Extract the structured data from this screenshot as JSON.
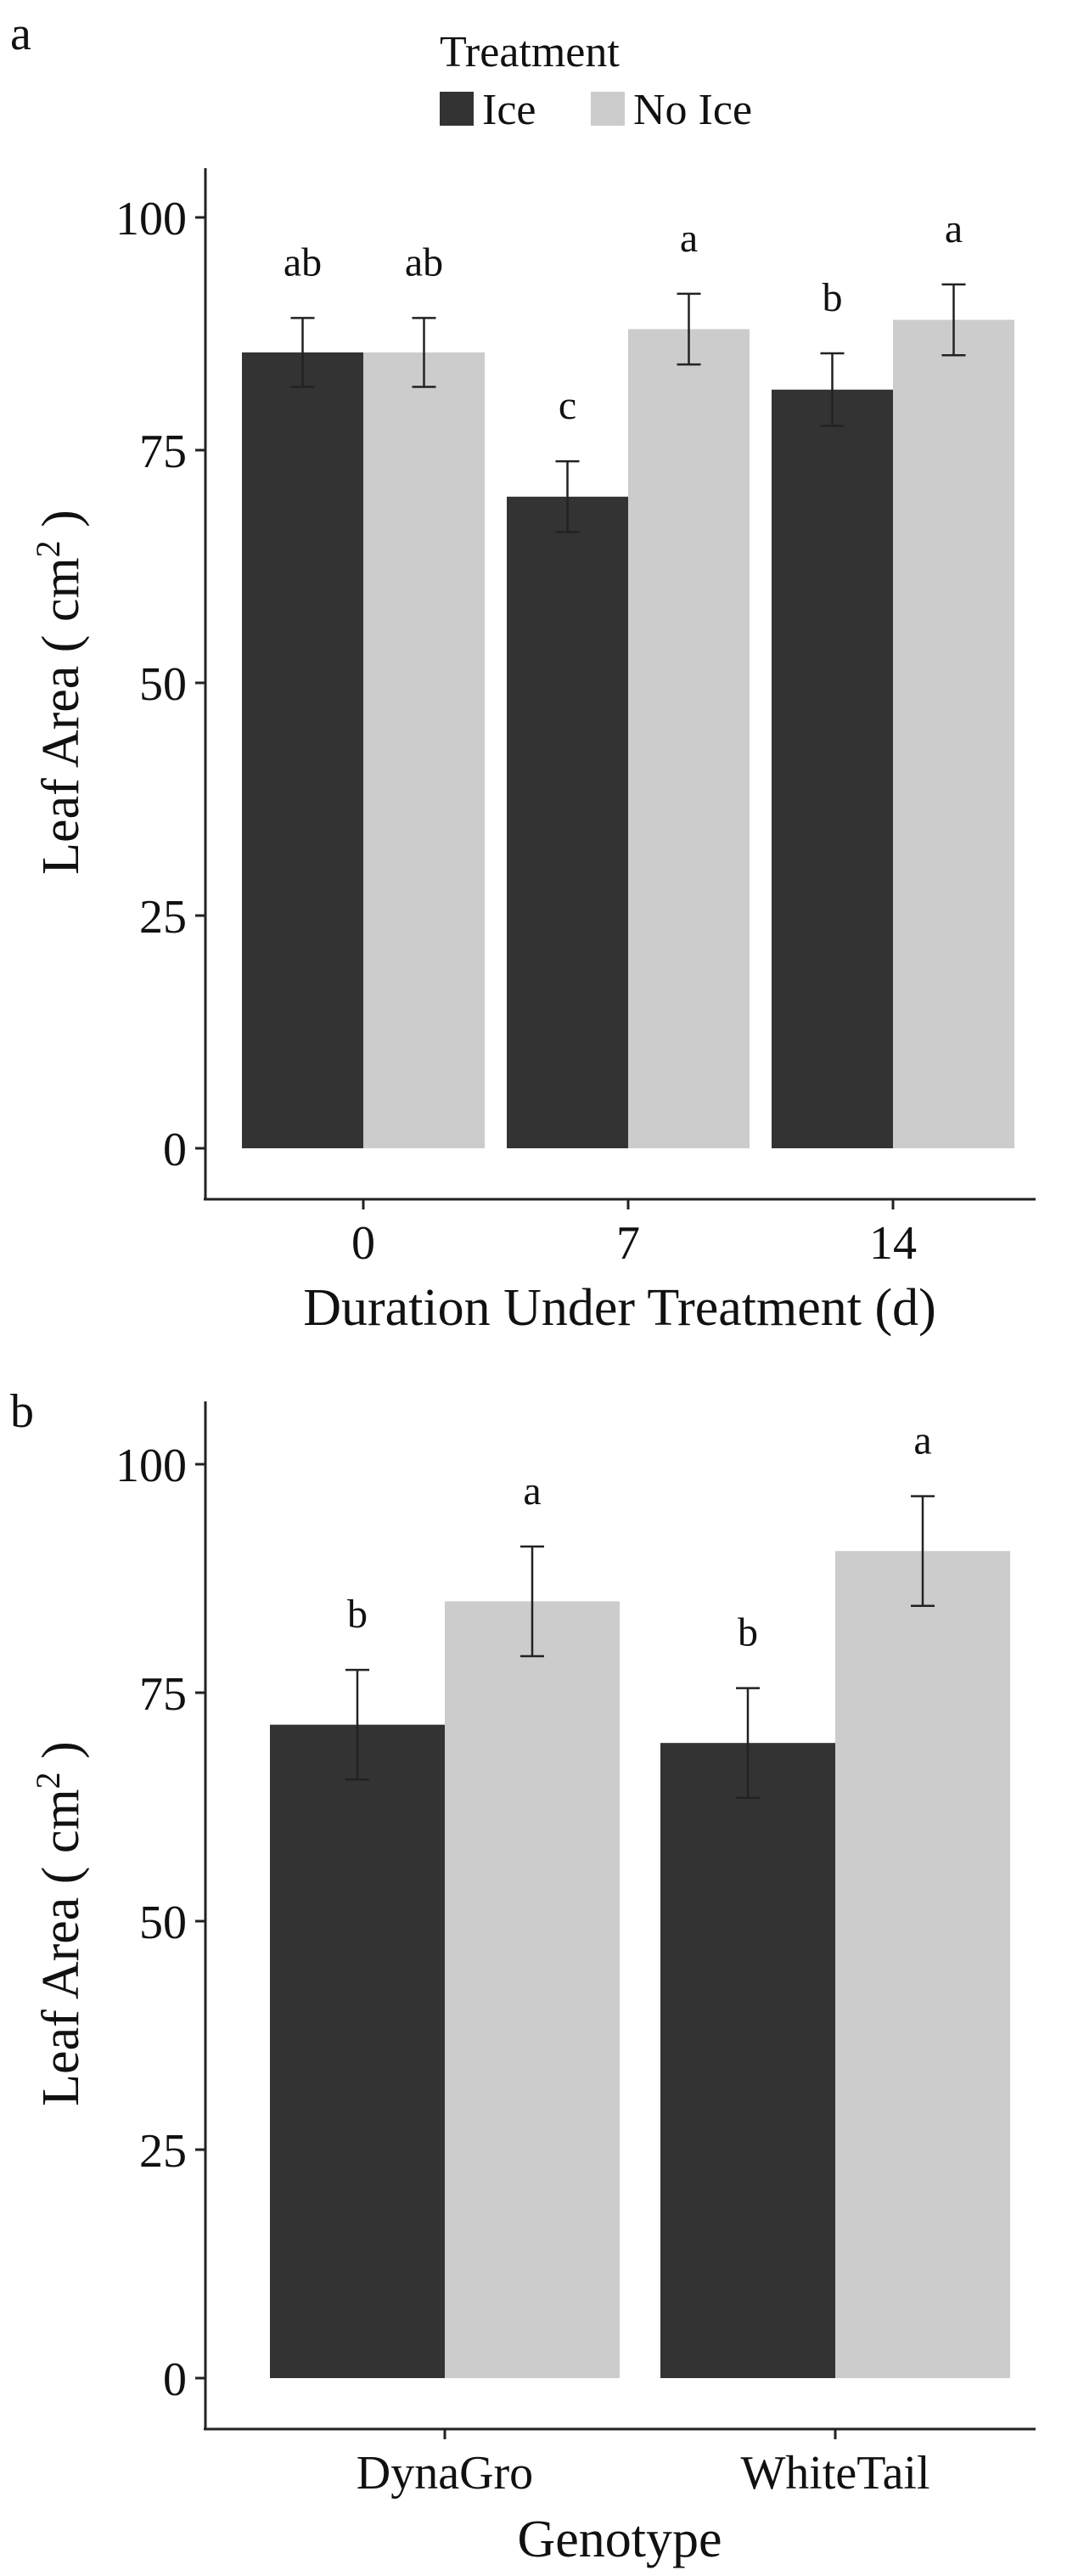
{
  "legend": {
    "title": "Treatment",
    "entries": [
      {
        "label": "Ice",
        "color": "#333333"
      },
      {
        "label": "No Ice",
        "color": "#cccccc"
      }
    ]
  },
  "chart_data": [
    {
      "panel": "a",
      "type": "bar",
      "xlabel": "Duration Under Treatment (d)",
      "ylabel": "Leaf Area ( cm",
      "ylabel_sup": "2",
      "ylabel_close": " )",
      "ylim": [
        0,
        105
      ],
      "yticks": [
        0,
        25,
        50,
        75,
        100
      ],
      "categories": [
        "0",
        "7",
        "14"
      ],
      "series": [
        {
          "name": "Ice",
          "color": "#333333",
          "values": [
            85.5,
            70,
            81.5
          ],
          "errors": [
            3.7,
            3.8,
            3.9
          ],
          "letters": [
            "ab",
            "c",
            "b"
          ]
        },
        {
          "name": "No Ice",
          "color": "#cccccc",
          "values": [
            85.5,
            88,
            89
          ],
          "errors": [
            3.7,
            3.8,
            3.8
          ],
          "letters": [
            "ab",
            "a",
            "a"
          ]
        }
      ]
    },
    {
      "panel": "b",
      "type": "bar",
      "xlabel": "Genotype",
      "ylabel": "Leaf Area ( cm",
      "ylabel_sup": "2",
      "ylabel_close": " )",
      "ylim": [
        0,
        105
      ],
      "yticks": [
        0,
        25,
        50,
        75,
        100
      ],
      "categories": [
        "DynaGro",
        "WhiteTail"
      ],
      "series": [
        {
          "name": "Ice",
          "color": "#333333",
          "values": [
            71.5,
            69.5
          ],
          "errors": [
            6,
            6
          ],
          "letters": [
            "b",
            "b"
          ]
        },
        {
          "name": "No Ice",
          "color": "#cccccc",
          "values": [
            85,
            90.5
          ],
          "errors": [
            6,
            6
          ],
          "letters": [
            "a",
            "a"
          ]
        }
      ]
    }
  ]
}
